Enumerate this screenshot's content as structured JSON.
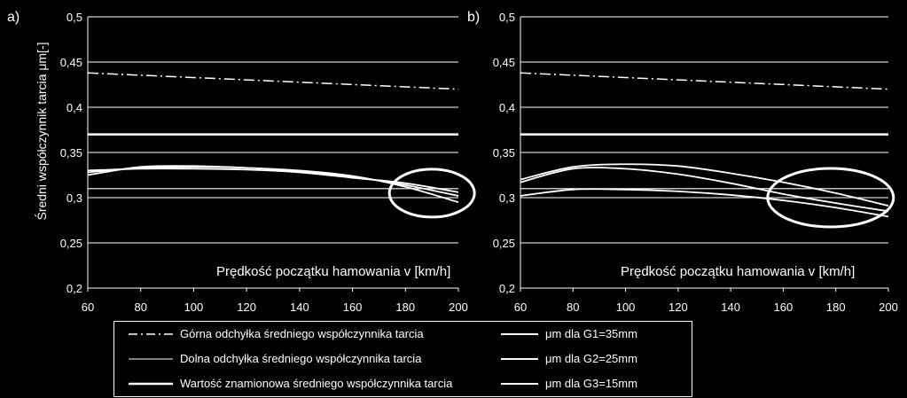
{
  "chart_data": [
    {
      "panel_label": "a)",
      "type": "line",
      "xlabel": "Prędkość  początku hamowania v [km/h]",
      "ylabel": "Średni współczynnik tarcia μm[-]",
      "xlim": [
        60,
        200
      ],
      "ylim": [
        0.2,
        0.5
      ],
      "x_ticks": [
        "60",
        "80",
        "100",
        "120",
        "140",
        "160",
        "180",
        "200"
      ],
      "y_ticks": [
        "0,2",
        "0,25",
        "0,3",
        "0,35",
        "0,4",
        "0,45",
        "0,5"
      ],
      "grid": true,
      "ellipse_annotation": {
        "x_center": 190,
        "y_center": 0.305
      },
      "series": [
        {
          "name": "Górna odchyłka średniego współczynnika tarcia",
          "style": "dashdot",
          "x": [
            60,
            200
          ],
          "y": [
            0.438,
            0.42
          ]
        },
        {
          "name": "Dolna odchyłka średniego współczynnika tarcia",
          "style": "thin",
          "x": [
            60,
            200
          ],
          "y": [
            0.31,
            0.31
          ]
        },
        {
          "name": "Wartość znamionowa średniego współczynnika tarcia",
          "style": "thick",
          "x": [
            60,
            200
          ],
          "y": [
            0.37,
            0.37
          ]
        },
        {
          "name": "μm dla G1=35mm",
          "style": "solid",
          "x": [
            60,
            80,
            100,
            120,
            140,
            160,
            180,
            200
          ],
          "y": [
            0.325,
            0.334,
            0.335,
            0.333,
            0.33,
            0.324,
            0.312,
            0.295
          ]
        },
        {
          "name": "μm dla G2=25mm",
          "style": "solid",
          "x": [
            60,
            80,
            100,
            120,
            140,
            160,
            180,
            200
          ],
          "y": [
            0.328,
            0.333,
            0.334,
            0.333,
            0.329,
            0.323,
            0.314,
            0.302
          ]
        },
        {
          "name": "μm dla G3=15mm",
          "style": "solid",
          "x": [
            60,
            80,
            100,
            120,
            140,
            160,
            180,
            200
          ],
          "y": [
            0.33,
            0.332,
            0.332,
            0.331,
            0.328,
            0.322,
            0.316,
            0.306
          ]
        }
      ]
    },
    {
      "panel_label": "b)",
      "type": "line",
      "xlabel": "Prędkość  początku hamowania v [km/h]",
      "xlim": [
        60,
        200
      ],
      "ylim": [
        0.2,
        0.5
      ],
      "x_ticks": [
        "60",
        "80",
        "100",
        "120",
        "140",
        "160",
        "180",
        "200"
      ],
      "y_ticks": [
        "0,2",
        "0,25",
        "0,3",
        "0,35",
        "0,4",
        "0,45",
        "0,5"
      ],
      "grid": true,
      "ellipse_annotation": {
        "x_center": 178,
        "y_center": 0.3
      },
      "series": [
        {
          "name": "Górna odchyłka średniego współczynnika tarcia",
          "style": "dashdot",
          "x": [
            60,
            200
          ],
          "y": [
            0.438,
            0.42
          ]
        },
        {
          "name": "Dolna odchyłka średniego współczynnika tarcia",
          "style": "thin",
          "x": [
            60,
            200
          ],
          "y": [
            0.31,
            0.31
          ]
        },
        {
          "name": "Wartość znamionowa średniego współczynnika tarcia",
          "style": "thick",
          "x": [
            60,
            200
          ],
          "y": [
            0.37,
            0.37
          ]
        },
        {
          "name": "μm dla G1=35mm",
          "style": "solid",
          "x": [
            60,
            80,
            100,
            120,
            140,
            160,
            180,
            200
          ],
          "y": [
            0.32,
            0.334,
            0.337,
            0.335,
            0.327,
            0.317,
            0.305,
            0.291
          ]
        },
        {
          "name": "μm dla G2=25mm",
          "style": "solid",
          "x": [
            60,
            80,
            100,
            120,
            140,
            160,
            180,
            200
          ],
          "y": [
            0.317,
            0.332,
            0.332,
            0.326,
            0.316,
            0.304,
            0.294,
            0.285
          ]
        },
        {
          "name": "μm dla G3=15mm",
          "style": "solid",
          "x": [
            60,
            80,
            100,
            120,
            140,
            160,
            180,
            200
          ],
          "y": [
            0.302,
            0.309,
            0.309,
            0.307,
            0.303,
            0.297,
            0.289,
            0.279
          ]
        }
      ]
    }
  ],
  "legend": [
    {
      "label": "Górna odchyłka średniego współczynnika tarcia",
      "style": "dashdot"
    },
    {
      "label": "Dolna odchyłka średniego współczynnika tarcia",
      "style": "thin"
    },
    {
      "label": "Wartość znamionowa średniego współczynnika tarcia",
      "style": "thick"
    },
    {
      "label": "μm dla G1=35mm",
      "style": "solid"
    },
    {
      "label": "μm dla G2=25mm",
      "style": "solid"
    },
    {
      "label": "μm dla G3=15mm",
      "style": "solid"
    }
  ],
  "colors": {
    "background": "#000000",
    "foreground": "#ffffff"
  }
}
